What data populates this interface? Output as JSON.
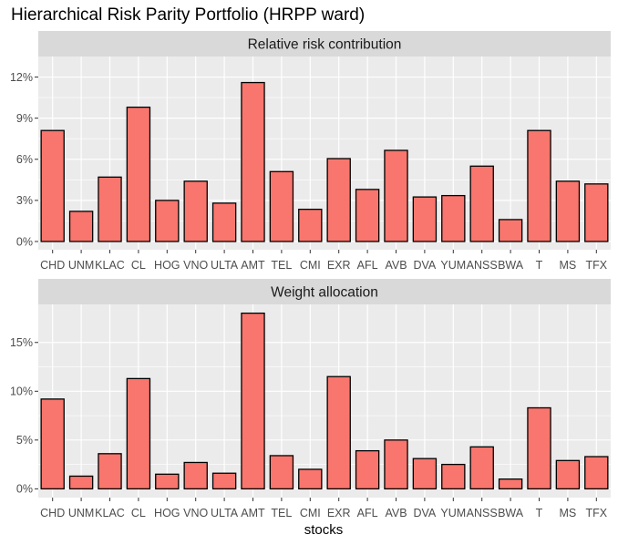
{
  "title": "Hierarchical Risk Parity Portfolio (HRPP ward)",
  "xlabel": "stocks",
  "colors": {
    "bar_fill": "#F8766D",
    "bar_outline": "#000000",
    "panel_bg": "#EBEBEB",
    "strip_bg": "#D9D9D9",
    "grid": "#FFFFFF"
  },
  "chart_data": [
    {
      "type": "bar",
      "title": "Relative risk contribution",
      "categories": [
        "CHD",
        "UNM",
        "KLAC",
        "CL",
        "HOG",
        "VNO",
        "ULTA",
        "AMT",
        "TEL",
        "CMI",
        "EXR",
        "AFL",
        "AVB",
        "DVA",
        "YUM",
        "ANSS",
        "BWA",
        "T",
        "MS",
        "TFX"
      ],
      "values": [
        8.1,
        2.2,
        4.7,
        9.8,
        3.0,
        4.4,
        2.8,
        11.6,
        5.1,
        2.35,
        6.05,
        3.8,
        6.65,
        3.25,
        3.35,
        5.5,
        1.6,
        8.1,
        4.4,
        4.2
      ],
      "ylim": [
        -0.6,
        13.5
      ],
      "yticks": [
        0,
        3,
        6,
        9,
        12
      ],
      "ytick_labels": [
        "0%",
        "3%",
        "6%",
        "9%",
        "12%"
      ],
      "grid": true
    },
    {
      "type": "bar",
      "title": "Weight allocation",
      "categories": [
        "CHD",
        "UNM",
        "KLAC",
        "CL",
        "HOG",
        "VNO",
        "ULTA",
        "AMT",
        "TEL",
        "CMI",
        "EXR",
        "AFL",
        "AVB",
        "DVA",
        "YUM",
        "ANSS",
        "BWA",
        "T",
        "MS",
        "TFX"
      ],
      "values": [
        9.2,
        1.3,
        3.6,
        11.3,
        1.5,
        2.7,
        1.6,
        18.0,
        3.4,
        2.0,
        11.5,
        3.9,
        5.0,
        3.1,
        2.5,
        4.3,
        1.0,
        8.3,
        2.9,
        3.3
      ],
      "ylim": [
        -0.9,
        18.9
      ],
      "yticks": [
        0,
        5,
        10,
        15
      ],
      "ytick_labels": [
        "0%",
        "5%",
        "10%",
        "15%"
      ],
      "grid": true
    }
  ]
}
